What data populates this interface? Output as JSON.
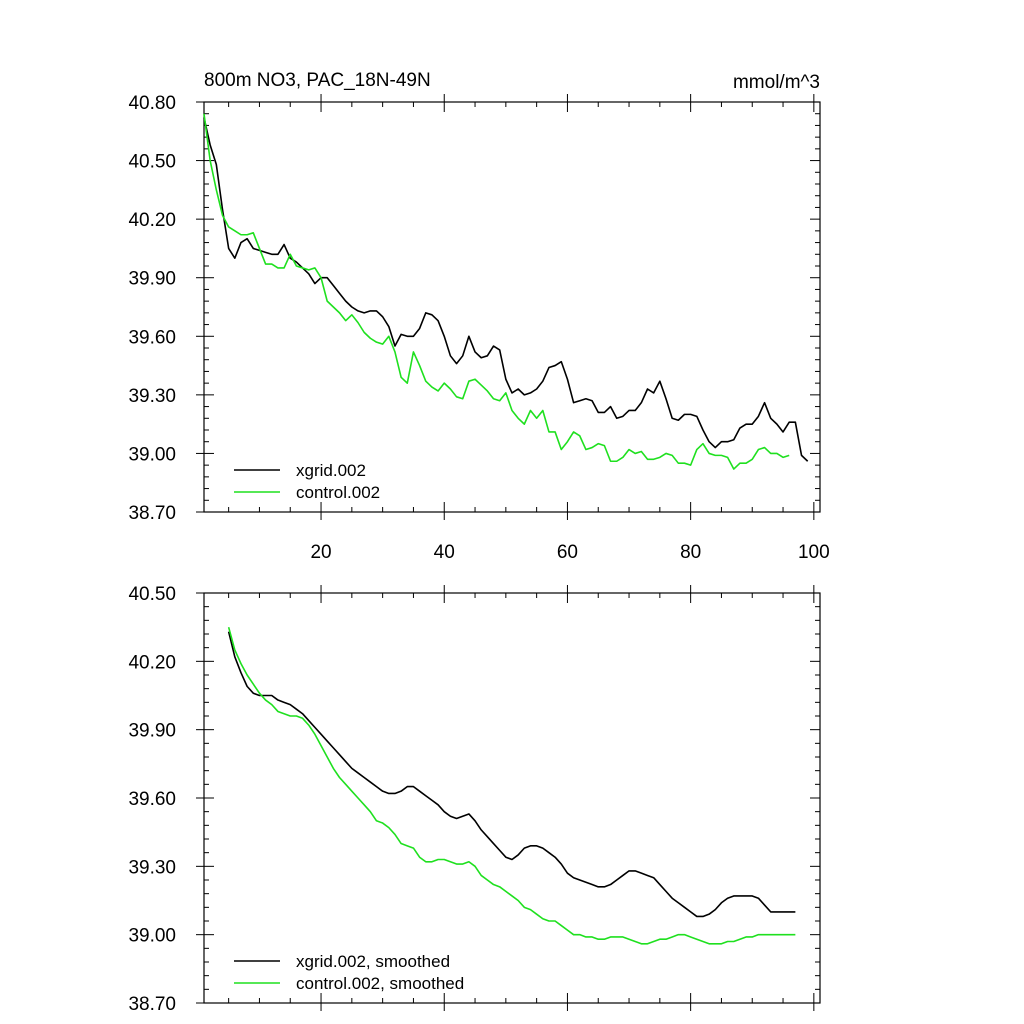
{
  "chart_data": [
    {
      "type": "line",
      "title": "800m NO3, PAC_18N-49N",
      "units": "mmol/m^3",
      "xlim": [
        1,
        101
      ],
      "ylim": [
        38.7,
        40.8
      ],
      "yticks": [
        "38.70",
        "39.00",
        "39.30",
        "39.60",
        "39.90",
        "40.20",
        "40.50",
        "40.80"
      ],
      "xticks": [
        "20",
        "40",
        "60",
        "80",
        "100"
      ],
      "colors": {
        "xgrid": "#000000",
        "control": "#1fe01f"
      },
      "series": [
        {
          "name": "xgrid.002",
          "color": "#000000",
          "x": [
            1,
            2,
            3,
            4,
            5,
            6,
            7,
            8,
            9,
            10,
            11,
            12,
            13,
            14,
            15,
            16,
            17,
            18,
            19,
            20,
            21,
            22,
            23,
            24,
            25,
            26,
            27,
            28,
            29,
            30,
            31,
            32,
            33,
            34,
            35,
            36,
            37,
            38,
            39,
            40,
            41,
            42,
            43,
            44,
            45,
            46,
            47,
            48,
            49,
            50,
            51,
            52,
            53,
            54,
            55,
            56,
            57,
            58,
            59,
            60,
            61,
            62,
            63,
            64,
            65,
            66,
            67,
            68,
            69,
            70,
            71,
            72,
            73,
            74,
            75,
            76,
            77,
            78,
            79,
            80,
            81,
            82,
            83,
            84,
            85,
            86,
            87,
            88,
            89,
            90,
            91,
            92,
            93,
            94,
            95,
            96,
            97,
            98,
            99,
            100,
            101
          ],
          "y": [
            40.72,
            40.58,
            40.48,
            40.25,
            40.05,
            40.0,
            40.08,
            40.1,
            40.05,
            40.04,
            40.03,
            40.02,
            40.02,
            40.07,
            40.0,
            39.98,
            39.95,
            39.92,
            39.87,
            39.9,
            39.9,
            39.86,
            39.82,
            39.78,
            39.75,
            39.73,
            39.72,
            39.73,
            39.73,
            39.7,
            39.65,
            39.55,
            39.61,
            39.6,
            39.6,
            39.64,
            39.72,
            39.71,
            39.68,
            39.6,
            39.5,
            39.46,
            39.5,
            39.6,
            39.52,
            39.49,
            39.5,
            39.55,
            39.53,
            39.38,
            39.31,
            39.33,
            39.3,
            39.31,
            39.33,
            39.37,
            39.44,
            39.45,
            39.47,
            39.38,
            39.26,
            39.27,
            39.28,
            39.27,
            39.21,
            39.21,
            39.24,
            39.18,
            39.19,
            39.22,
            39.22,
            39.26,
            39.33,
            39.31,
            39.37,
            39.28,
            39.18,
            39.17,
            39.2,
            39.2,
            39.19,
            39.12,
            39.06,
            39.03,
            39.06,
            39.06,
            39.07,
            39.13,
            39.15,
            39.15,
            39.19,
            39.26,
            39.18,
            39.15,
            39.11,
            39.16,
            39.16,
            38.99,
            38.96,
            null,
            null
          ]
        },
        {
          "name": "control.002",
          "color": "#1fe01f",
          "x": [
            1,
            2,
            3,
            4,
            5,
            6,
            7,
            8,
            9,
            10,
            11,
            12,
            13,
            14,
            15,
            16,
            17,
            18,
            19,
            20,
            21,
            22,
            23,
            24,
            25,
            26,
            27,
            28,
            29,
            30,
            31,
            32,
            33,
            34,
            35,
            36,
            37,
            38,
            39,
            40,
            41,
            42,
            43,
            44,
            45,
            46,
            47,
            48,
            49,
            50,
            51,
            52,
            53,
            54,
            55,
            56,
            57,
            58,
            59,
            60,
            61,
            62,
            63,
            64,
            65,
            66,
            67,
            68,
            69,
            70,
            71,
            72,
            73,
            74,
            75,
            76,
            77,
            78,
            79,
            80,
            81,
            82,
            83,
            84,
            85,
            86,
            87,
            88,
            89,
            90,
            91,
            92,
            93,
            94,
            95,
            96,
            97,
            98,
            99,
            100,
            101
          ],
          "y": [
            40.74,
            40.5,
            40.35,
            40.22,
            40.16,
            40.14,
            40.12,
            40.12,
            40.13,
            40.05,
            39.97,
            39.97,
            39.95,
            39.95,
            40.02,
            39.96,
            39.95,
            39.94,
            39.95,
            39.9,
            39.78,
            39.75,
            39.72,
            39.68,
            39.71,
            39.67,
            39.62,
            39.59,
            39.57,
            39.56,
            39.6,
            39.52,
            39.39,
            39.36,
            39.52,
            39.45,
            39.37,
            39.34,
            39.32,
            39.36,
            39.33,
            39.29,
            39.28,
            39.37,
            39.38,
            39.35,
            39.32,
            39.28,
            39.27,
            39.31,
            39.22,
            39.18,
            39.15,
            39.22,
            39.18,
            39.22,
            39.11,
            39.11,
            39.02,
            39.06,
            39.11,
            39.09,
            39.02,
            39.03,
            39.05,
            39.04,
            38.96,
            38.96,
            38.98,
            39.02,
            39.0,
            39.01,
            38.97,
            38.97,
            38.98,
            39.0,
            38.99,
            38.95,
            38.95,
            38.94,
            39.02,
            39.05,
            39.0,
            38.99,
            38.99,
            38.98,
            38.92,
            38.95,
            38.95,
            38.97,
            39.02,
            39.03,
            39.0,
            39.0,
            38.98,
            38.99,
            null,
            null,
            null,
            null,
            null
          ]
        }
      ]
    },
    {
      "type": "line",
      "xlim": [
        1,
        101
      ],
      "ylim": [
        38.7,
        40.5
      ],
      "yticks": [
        "38.70",
        "39.00",
        "39.30",
        "39.60",
        "39.90",
        "40.20",
        "40.50"
      ],
      "series": [
        {
          "name": "xgrid.002, smoothed",
          "color": "#000000",
          "x": [
            5,
            6,
            7,
            8,
            9,
            10,
            11,
            12,
            13,
            14,
            15,
            16,
            17,
            18,
            19,
            20,
            21,
            22,
            23,
            24,
            25,
            26,
            27,
            28,
            29,
            30,
            31,
            32,
            33,
            34,
            35,
            36,
            37,
            38,
            39,
            40,
            41,
            42,
            43,
            44,
            45,
            46,
            47,
            48,
            49,
            50,
            51,
            52,
            53,
            54,
            55,
            56,
            57,
            58,
            59,
            60,
            61,
            62,
            63,
            64,
            65,
            66,
            67,
            68,
            69,
            70,
            71,
            72,
            73,
            74,
            75,
            76,
            77,
            78,
            79,
            80,
            81,
            82,
            83,
            84,
            85,
            86,
            87,
            88,
            89,
            90,
            91,
            92,
            93,
            94,
            95,
            96,
            97
          ],
          "y": [
            40.33,
            40.22,
            40.15,
            40.09,
            40.06,
            40.05,
            40.05,
            40.05,
            40.03,
            40.02,
            40.01,
            39.99,
            39.97,
            39.94,
            39.91,
            39.88,
            39.85,
            39.82,
            39.79,
            39.76,
            39.73,
            39.71,
            39.69,
            39.67,
            39.65,
            39.63,
            39.62,
            39.62,
            39.63,
            39.65,
            39.65,
            39.63,
            39.61,
            39.59,
            39.57,
            39.54,
            39.52,
            39.51,
            39.52,
            39.53,
            39.5,
            39.46,
            39.43,
            39.4,
            39.37,
            39.34,
            39.33,
            39.35,
            39.38,
            39.39,
            39.39,
            39.38,
            39.36,
            39.34,
            39.31,
            39.27,
            39.25,
            39.24,
            39.23,
            39.22,
            39.21,
            39.21,
            39.22,
            39.24,
            39.26,
            39.28,
            39.28,
            39.27,
            39.26,
            39.25,
            39.22,
            39.19,
            39.16,
            39.14,
            39.12,
            39.1,
            39.08,
            39.08,
            39.09,
            39.11,
            39.14,
            39.16,
            39.17,
            39.17,
            39.17,
            39.17,
            39.16,
            39.13,
            39.1,
            39.1,
            39.1,
            39.1,
            39.1
          ]
        },
        {
          "name": "control.002, smoothed",
          "color": "#1fe01f",
          "x": [
            5,
            6,
            7,
            8,
            9,
            10,
            11,
            12,
            13,
            14,
            15,
            16,
            17,
            18,
            19,
            20,
            21,
            22,
            23,
            24,
            25,
            26,
            27,
            28,
            29,
            30,
            31,
            32,
            33,
            34,
            35,
            36,
            37,
            38,
            39,
            40,
            41,
            42,
            43,
            44,
            45,
            46,
            47,
            48,
            49,
            50,
            51,
            52,
            53,
            54,
            55,
            56,
            57,
            58,
            59,
            60,
            61,
            62,
            63,
            64,
            65,
            66,
            67,
            68,
            69,
            70,
            71,
            72,
            73,
            74,
            75,
            76,
            77,
            78,
            79,
            80,
            81,
            82,
            83,
            84,
            85,
            86,
            87,
            88,
            89,
            90,
            91,
            92,
            93,
            94,
            95,
            96,
            97
          ],
          "y": [
            40.35,
            40.25,
            40.19,
            40.14,
            40.1,
            40.06,
            40.03,
            40.01,
            39.98,
            39.97,
            39.96,
            39.96,
            39.95,
            39.92,
            39.88,
            39.83,
            39.78,
            39.73,
            39.69,
            39.66,
            39.63,
            39.6,
            39.57,
            39.54,
            39.5,
            39.49,
            39.47,
            39.44,
            39.4,
            39.39,
            39.38,
            39.34,
            39.32,
            39.32,
            39.33,
            39.33,
            39.32,
            39.31,
            39.31,
            39.32,
            39.3,
            39.26,
            39.24,
            39.22,
            39.21,
            39.19,
            39.17,
            39.15,
            39.12,
            39.11,
            39.09,
            39.07,
            39.06,
            39.06,
            39.04,
            39.02,
            39.0,
            39.0,
            38.99,
            38.99,
            38.98,
            38.98,
            38.99,
            38.99,
            38.99,
            38.98,
            38.97,
            38.96,
            38.96,
            38.97,
            38.98,
            38.98,
            38.99,
            39.0,
            39.0,
            38.99,
            38.98,
            38.97,
            38.96,
            38.96,
            38.96,
            38.97,
            38.97,
            38.98,
            38.99,
            38.99,
            39.0,
            39.0,
            39.0,
            39.0,
            39.0,
            39.0,
            39.0
          ]
        }
      ]
    }
  ]
}
